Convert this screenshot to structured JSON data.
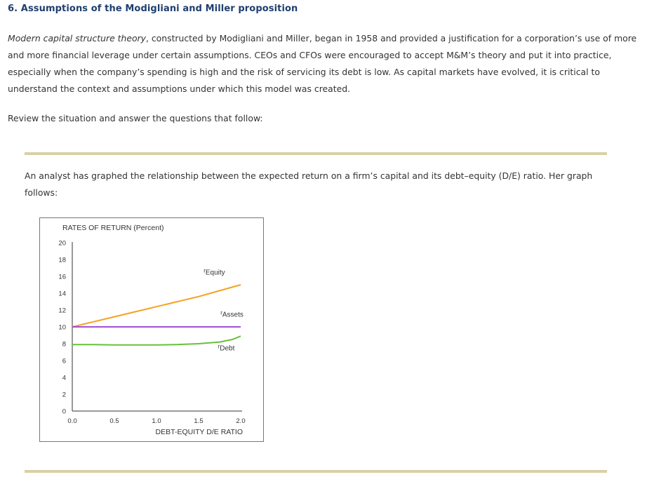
{
  "section": {
    "title": "6. Assumptions of the Modigliani and Miller proposition"
  },
  "intro": {
    "term": "Modern capital structure theory",
    "text": ", constructed by Modigliani and Miller, began in 1958 and provided a justification for a corporation’s use of more and more financial leverage under certain assumptions. CEOs and CFOs were encouraged to accept M&M’s theory and put it into practice, especially when the company’s spending is high and the risk of servicing its debt is low. As capital markets have evolved, it is critical to understand the context and assumptions under which this model was created."
  },
  "review": "Review the situation and answer the questions that follow:",
  "scenario": "An analyst has graphed the relationship between the expected return on a firm’s capital and its debt–equity (D/E) ratio. Her graph follows:",
  "chart_data": {
    "type": "line",
    "title": "RATES OF RETURN (Percent)",
    "xlabel": "DEBT-EQUITY D/E RATIO",
    "ylabel": "RATES OF RETURN (Percent)",
    "xlim": [
      0,
      2
    ],
    "ylim": [
      0,
      20
    ],
    "x_ticks": [
      "0.0",
      "0.5",
      "1.0",
      "1.5",
      "2.0"
    ],
    "x_tick_values": [
      0,
      0.5,
      1.0,
      1.5,
      2.0
    ],
    "y_ticks": [
      "0",
      "2",
      "4",
      "6",
      "8",
      "10",
      "12",
      "14",
      "16",
      "18",
      "20"
    ],
    "y_tick_values": [
      0,
      2,
      4,
      6,
      8,
      10,
      12,
      14,
      16,
      18,
      20
    ],
    "series": [
      {
        "name": "Equity",
        "label_prefix": "r",
        "label_sub": "Equity",
        "color": "#f5a21f",
        "x": [
          0,
          0.25,
          0.5,
          0.75,
          1.0,
          1.25,
          1.5,
          1.75,
          2.0
        ],
        "y": [
          10,
          10.6,
          11.2,
          11.8,
          12.4,
          13.0,
          13.6,
          14.3,
          15.0
        ]
      },
      {
        "name": "Assets",
        "label_prefix": "r",
        "label_sub": "Assets",
        "color": "#a64fd6",
        "x": [
          0,
          2.0
        ],
        "y": [
          10,
          10
        ]
      },
      {
        "name": "Debt",
        "label_prefix": "r",
        "label_sub": "Debt",
        "color": "#66c13a",
        "x": [
          0,
          0.25,
          0.5,
          0.75,
          1.0,
          1.25,
          1.5,
          1.75,
          1.9,
          2.0
        ],
        "y": [
          7.9,
          7.9,
          7.85,
          7.85,
          7.85,
          7.9,
          8.0,
          8.2,
          8.5,
          8.9
        ]
      }
    ]
  }
}
